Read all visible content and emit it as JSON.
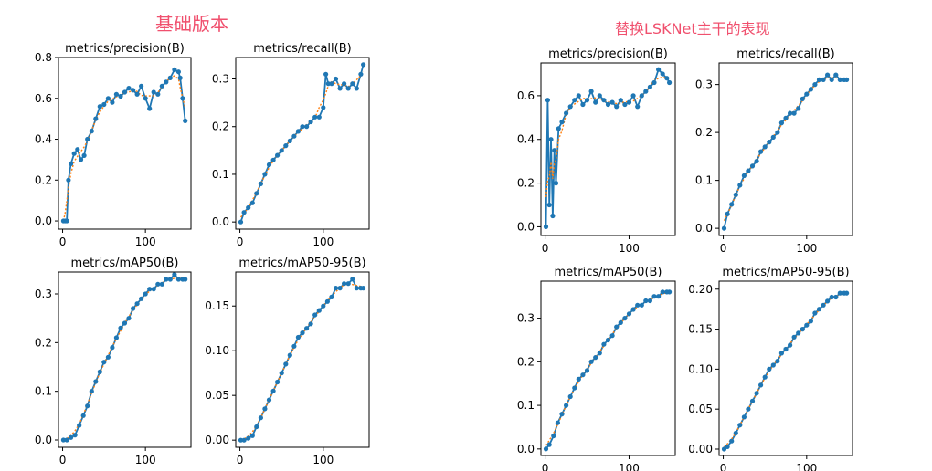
{
  "panels": {
    "left_title": "基础版本",
    "right_title": "替换LSKNet主干的表现"
  },
  "colors": {
    "line": "#1f77b4",
    "smooth": "#ff7f0e",
    "title": "#f0506e"
  },
  "chart_data": [
    {
      "type": "line",
      "title": "metrics/precision(B)",
      "xlim": [
        -5,
        155
      ],
      "ylim": [
        -0.04,
        0.8
      ],
      "xticks": [
        0,
        100
      ],
      "yticks": [
        0.0,
        0.2,
        0.4,
        0.6,
        0.8
      ],
      "ytick_labels": [
        "0.0",
        "0.2",
        "0.4",
        "0.6",
        "0.8"
      ],
      "series": [
        {
          "x": [
            1,
            3,
            5,
            7,
            10,
            14,
            18,
            22,
            26,
            30,
            35,
            40,
            45,
            50,
            55,
            60,
            65,
            70,
            75,
            80,
            85,
            90,
            95,
            100,
            105,
            110,
            115,
            120,
            125,
            130,
            135,
            140,
            142,
            145,
            148
          ],
          "y": [
            0.0,
            0.0,
            0.0,
            0.2,
            0.28,
            0.33,
            0.35,
            0.3,
            0.32,
            0.4,
            0.44,
            0.5,
            0.56,
            0.57,
            0.6,
            0.58,
            0.62,
            0.61,
            0.63,
            0.65,
            0.64,
            0.62,
            0.66,
            0.6,
            0.55,
            0.63,
            0.62,
            0.66,
            0.68,
            0.7,
            0.74,
            0.73,
            0.7,
            0.6,
            0.49
          ]
        }
      ]
    },
    {
      "type": "line",
      "title": "metrics/recall(B)",
      "xlim": [
        -5,
        155
      ],
      "ylim": [
        -0.015,
        0.345
      ],
      "xticks": [
        0,
        100
      ],
      "yticks": [
        0.0,
        0.1,
        0.2,
        0.3
      ],
      "ytick_labels": [
        "0.0",
        "0.1",
        "0.2",
        "0.3"
      ],
      "series": [
        {
          "x": [
            1,
            5,
            10,
            15,
            20,
            25,
            30,
            35,
            40,
            45,
            50,
            55,
            60,
            65,
            70,
            75,
            80,
            85,
            90,
            95,
            100,
            103,
            106,
            110,
            115,
            120,
            125,
            130,
            135,
            140,
            145,
            148
          ],
          "y": [
            0.0,
            0.02,
            0.03,
            0.04,
            0.06,
            0.08,
            0.1,
            0.12,
            0.13,
            0.14,
            0.15,
            0.16,
            0.17,
            0.18,
            0.19,
            0.2,
            0.2,
            0.21,
            0.22,
            0.22,
            0.24,
            0.31,
            0.29,
            0.29,
            0.3,
            0.28,
            0.29,
            0.28,
            0.29,
            0.28,
            0.31,
            0.33
          ]
        }
      ]
    },
    {
      "type": "line",
      "title": "metrics/mAP50(B)",
      "xlim": [
        -5,
        155
      ],
      "ylim": [
        -0.015,
        0.345
      ],
      "xticks": [
        0,
        100
      ],
      "yticks": [
        0.0,
        0.1,
        0.2,
        0.3
      ],
      "ytick_labels": [
        "0.0",
        "0.1",
        "0.2",
        "0.3"
      ],
      "series": [
        {
          "x": [
            1,
            5,
            10,
            15,
            20,
            25,
            30,
            35,
            40,
            45,
            50,
            55,
            60,
            65,
            70,
            75,
            80,
            85,
            90,
            95,
            100,
            105,
            110,
            115,
            120,
            125,
            130,
            135,
            140,
            145,
            148
          ],
          "y": [
            0.0,
            0.0,
            0.005,
            0.01,
            0.03,
            0.05,
            0.07,
            0.1,
            0.12,
            0.14,
            0.16,
            0.17,
            0.19,
            0.21,
            0.23,
            0.24,
            0.25,
            0.27,
            0.28,
            0.29,
            0.3,
            0.31,
            0.31,
            0.32,
            0.32,
            0.33,
            0.33,
            0.34,
            0.33,
            0.33,
            0.33
          ]
        }
      ]
    },
    {
      "type": "line",
      "title": "metrics/mAP50-95(B)",
      "xlim": [
        -5,
        155
      ],
      "ylim": [
        -0.008,
        0.188
      ],
      "xticks": [
        0,
        100
      ],
      "yticks": [
        0.0,
        0.05,
        0.1,
        0.15
      ],
      "ytick_labels": [
        "0.00",
        "0.05",
        "0.10",
        "0.15"
      ],
      "series": [
        {
          "x": [
            1,
            5,
            10,
            15,
            20,
            25,
            30,
            35,
            40,
            45,
            50,
            55,
            60,
            65,
            70,
            75,
            80,
            85,
            90,
            95,
            100,
            105,
            110,
            115,
            120,
            125,
            130,
            135,
            140,
            145,
            148
          ],
          "y": [
            0.0,
            0.0,
            0.002,
            0.005,
            0.015,
            0.025,
            0.035,
            0.045,
            0.055,
            0.065,
            0.075,
            0.085,
            0.095,
            0.105,
            0.115,
            0.12,
            0.125,
            0.13,
            0.14,
            0.145,
            0.15,
            0.155,
            0.16,
            0.17,
            0.17,
            0.175,
            0.175,
            0.18,
            0.17,
            0.17,
            0.17
          ]
        }
      ]
    },
    {
      "type": "line",
      "title": "metrics/precision(B)",
      "xlim": [
        -5,
        155
      ],
      "ylim": [
        -0.04,
        0.75
      ],
      "xticks": [
        0,
        100
      ],
      "yticks": [
        0.0,
        0.2,
        0.4,
        0.6
      ],
      "ytick_labels": [
        "0.0",
        "0.2",
        "0.4",
        "0.6"
      ],
      "series": [
        {
          "x": [
            1,
            3,
            5,
            7,
            9,
            11,
            13,
            16,
            20,
            25,
            30,
            35,
            40,
            45,
            50,
            55,
            60,
            65,
            70,
            75,
            80,
            85,
            90,
            95,
            100,
            105,
            110,
            115,
            120,
            125,
            130,
            135,
            140,
            145,
            148
          ],
          "y": [
            0.0,
            0.58,
            0.1,
            0.4,
            0.05,
            0.35,
            0.2,
            0.45,
            0.48,
            0.52,
            0.55,
            0.58,
            0.6,
            0.56,
            0.58,
            0.62,
            0.57,
            0.6,
            0.58,
            0.56,
            0.57,
            0.55,
            0.58,
            0.56,
            0.57,
            0.6,
            0.55,
            0.6,
            0.62,
            0.64,
            0.66,
            0.72,
            0.7,
            0.68,
            0.66
          ]
        }
      ]
    },
    {
      "type": "line",
      "title": "metrics/recall(B)",
      "xlim": [
        -5,
        155
      ],
      "ylim": [
        -0.015,
        0.345
      ],
      "xticks": [
        0,
        100
      ],
      "yticks": [
        0.0,
        0.1,
        0.2,
        0.3
      ],
      "ytick_labels": [
        "0.0",
        "0.1",
        "0.2",
        "0.3"
      ],
      "series": [
        {
          "x": [
            1,
            5,
            10,
            15,
            20,
            25,
            30,
            35,
            40,
            45,
            50,
            55,
            60,
            65,
            70,
            75,
            80,
            85,
            90,
            95,
            100,
            105,
            110,
            115,
            120,
            125,
            130,
            135,
            140,
            145,
            148
          ],
          "y": [
            0.0,
            0.03,
            0.05,
            0.07,
            0.09,
            0.11,
            0.12,
            0.13,
            0.14,
            0.16,
            0.17,
            0.18,
            0.19,
            0.2,
            0.22,
            0.23,
            0.24,
            0.24,
            0.25,
            0.27,
            0.28,
            0.29,
            0.3,
            0.31,
            0.31,
            0.32,
            0.31,
            0.32,
            0.31,
            0.31,
            0.31
          ]
        }
      ]
    },
    {
      "type": "line",
      "title": "metrics/mAP50(B)",
      "xlim": [
        -5,
        155
      ],
      "ylim": [
        -0.015,
        0.385
      ],
      "xticks": [
        0,
        100
      ],
      "yticks": [
        0.0,
        0.1,
        0.2,
        0.3
      ],
      "ytick_labels": [
        "0.0",
        "0.1",
        "0.2",
        "0.3"
      ],
      "series": [
        {
          "x": [
            1,
            5,
            10,
            15,
            20,
            25,
            30,
            35,
            40,
            45,
            50,
            55,
            60,
            65,
            70,
            75,
            80,
            85,
            90,
            95,
            100,
            105,
            110,
            115,
            120,
            125,
            130,
            135,
            140,
            145,
            148
          ],
          "y": [
            0.0,
            0.01,
            0.03,
            0.06,
            0.08,
            0.1,
            0.12,
            0.14,
            0.16,
            0.17,
            0.18,
            0.2,
            0.21,
            0.22,
            0.24,
            0.25,
            0.26,
            0.28,
            0.29,
            0.3,
            0.31,
            0.32,
            0.33,
            0.33,
            0.34,
            0.34,
            0.35,
            0.35,
            0.36,
            0.36,
            0.36
          ]
        }
      ]
    },
    {
      "type": "line",
      "title": "metrics/mAP50-95(B)",
      "xlim": [
        -5,
        155
      ],
      "ylim": [
        -0.008,
        0.21
      ],
      "xticks": [
        0,
        100
      ],
      "yticks": [
        0.0,
        0.05,
        0.1,
        0.15,
        0.2
      ],
      "ytick_labels": [
        "0.00",
        "0.05",
        "0.10",
        "0.15",
        "0.20"
      ],
      "series": [
        {
          "x": [
            1,
            5,
            10,
            15,
            20,
            25,
            30,
            35,
            40,
            45,
            50,
            55,
            60,
            65,
            70,
            75,
            80,
            85,
            90,
            95,
            100,
            105,
            110,
            115,
            120,
            125,
            130,
            135,
            140,
            145,
            148
          ],
          "y": [
            0.0,
            0.003,
            0.01,
            0.02,
            0.03,
            0.04,
            0.05,
            0.06,
            0.07,
            0.08,
            0.09,
            0.1,
            0.105,
            0.11,
            0.12,
            0.125,
            0.13,
            0.14,
            0.145,
            0.15,
            0.155,
            0.16,
            0.17,
            0.175,
            0.18,
            0.185,
            0.19,
            0.19,
            0.195,
            0.195,
            0.195
          ]
        }
      ]
    }
  ]
}
